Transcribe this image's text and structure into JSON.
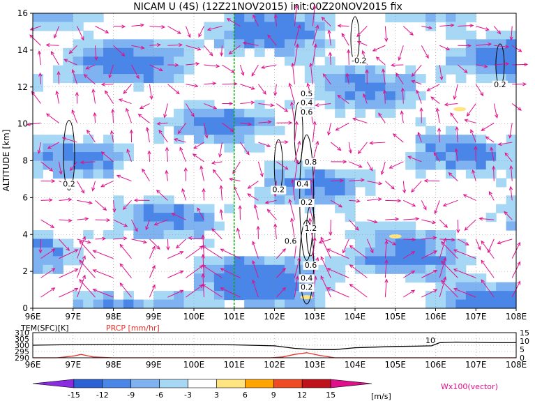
{
  "chart_data": [
    {
      "type": "heatmap",
      "title": "NICAM U (4S) (12Z21NOV2015) init:00Z20NOV2015 fix",
      "ylabel": "ALTITUDE [km]",
      "xlabel": "",
      "x_ticks": [
        "96E",
        "97E",
        "98E",
        "99E",
        "100E",
        "101E",
        "102E",
        "103E",
        "104E",
        "105E",
        "106E",
        "107E",
        "108E"
      ],
      "y_ticks": [
        "0",
        "2",
        "4",
        "6",
        "8",
        "10",
        "12",
        "14",
        "16"
      ],
      "xlim": [
        96,
        108
      ],
      "ylim": [
        0,
        16
      ],
      "grid": true,
      "marker_longitude": 101,
      "contour_labels": [
        {
          "text": "0.2",
          "x": 96.9,
          "y": 6.6
        },
        {
          "text": "0.2",
          "x": 102.1,
          "y": 6.3
        },
        {
          "text": "-0.2",
          "x": 104.1,
          "y": 13.3
        },
        {
          "text": "0.2",
          "x": 107.6,
          "y": 12.0
        },
        {
          "text": "0.5",
          "x": 102.8,
          "y": 11.5
        },
        {
          "text": "0.4",
          "x": 102.8,
          "y": 11.0
        },
        {
          "text": "0.6",
          "x": 102.8,
          "y": 10.5
        },
        {
          "text": "0.8",
          "x": 102.9,
          "y": 7.8
        },
        {
          "text": "0.4",
          "x": 102.7,
          "y": 6.6
        },
        {
          "text": "0.2",
          "x": 102.8,
          "y": 5.6
        },
        {
          "text": "1.2",
          "x": 102.9,
          "y": 4.2
        },
        {
          "text": "0.6",
          "x": 102.4,
          "y": 3.5
        },
        {
          "text": "0.6",
          "x": 102.9,
          "y": 2.2
        },
        {
          "text": "0.4",
          "x": 102.8,
          "y": 1.5
        },
        {
          "text": "0.2",
          "x": 102.8,
          "y": 1.0
        }
      ],
      "vector_legend": "Wx100(vector)"
    },
    {
      "type": "line",
      "series": [
        {
          "name": "TEM(SFC)[K]",
          "color": "#000000",
          "x": [
            96,
            97,
            98,
            99,
            100,
            101,
            102,
            102.5,
            103,
            103.5,
            104,
            104.5,
            105,
            105.5,
            105.9,
            106.1,
            106.5,
            107,
            107.5,
            108
          ],
          "y": [
            300,
            300.5,
            300.8,
            300.8,
            300.6,
            300.3,
            299.5,
            297.5,
            296.5,
            296.5,
            298,
            298.5,
            299,
            299.2,
            299.5,
            302,
            302.5,
            302.2,
            302,
            302
          ]
        },
        {
          "name": "PRCP [mm/hr]",
          "color": "#e8302a",
          "x": [
            96,
            96.6,
            97,
            97.2,
            97.5,
            98,
            101.9,
            102.2,
            102.5,
            102.8,
            103.1,
            103.5,
            104,
            108
          ],
          "y": [
            0,
            0,
            1,
            2,
            0.5,
            0,
            0,
            0.5,
            2,
            3,
            1.5,
            0,
            0,
            0
          ]
        }
      ],
      "left_ticks": [
        "310",
        "305",
        "300",
        "295",
        "290"
      ],
      "left_range": [
        290,
        310
      ],
      "right_ticks": [
        "15",
        "10",
        "5",
        "0"
      ],
      "right_range": [
        0,
        15
      ],
      "x_ticks": [
        "96E",
        "97E",
        "98E",
        "99E",
        "100E",
        "101E",
        "102E",
        "103E",
        "104E",
        "105E",
        "106E",
        "107E",
        "108E"
      ],
      "annotation": "10"
    }
  ],
  "colorbar": {
    "labels": [
      "-15",
      "-12",
      "-9",
      "-6",
      "-3",
      "3",
      "6",
      "9",
      "12",
      "15"
    ],
    "colors": [
      "#8a2be2",
      "#2c62d4",
      "#4a86e8",
      "#7fb2f0",
      "#a6d8f6",
      "#ffffff",
      "#ffe480",
      "#ffa400",
      "#f04a24",
      "#c0121a",
      "#e0108a"
    ],
    "units": "[m/s]"
  },
  "colors": {
    "vector": "#e0108a",
    "marker_line": "#00b000",
    "temperature": "#000000",
    "precip": "#e8302a"
  }
}
